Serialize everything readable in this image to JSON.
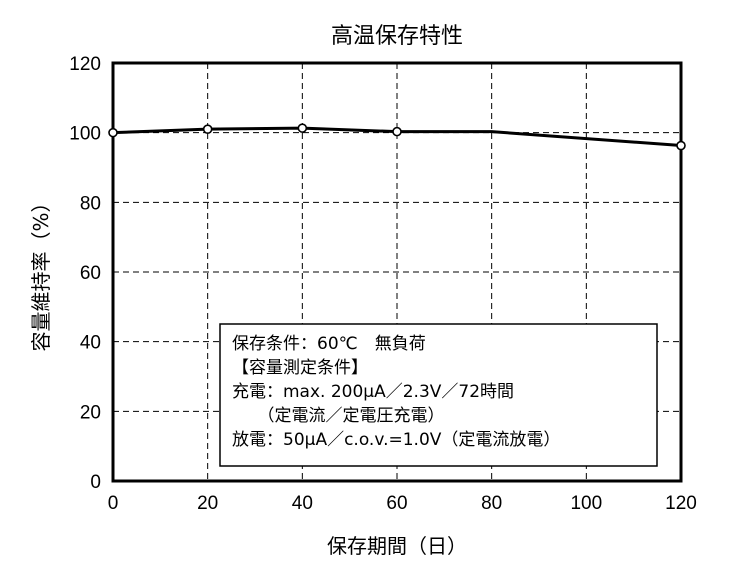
{
  "chart_data": {
    "type": "line",
    "title": "高温保存特性",
    "xlabel": "保存期間（日）",
    "ylabel": "容量維持率（%）",
    "xlim": [
      0,
      120
    ],
    "ylim": [
      0,
      120
    ],
    "x_ticks": [
      "0",
      "20",
      "40",
      "60",
      "80",
      "100",
      "120"
    ],
    "y_ticks": [
      "0",
      "20",
      "40",
      "60",
      "80",
      "100",
      "120"
    ],
    "grid": true,
    "series": [
      {
        "x": [
          0,
          20,
          40,
          60,
          80,
          120
        ],
        "y": [
          100,
          101,
          101.3,
          100.3,
          100.3,
          96.3
        ],
        "marker_x": [
          0,
          20,
          40,
          60,
          120
        ]
      }
    ],
    "annotation_lines": [
      "保存条件：60℃　無負荷",
      "【容量測定条件】",
      "充電：max. 200μA／2.3V／72時間",
      "　　（定電流／定電圧充電）",
      "放電：50μA／c.o.v.=1.0V（定電流放電）"
    ]
  }
}
